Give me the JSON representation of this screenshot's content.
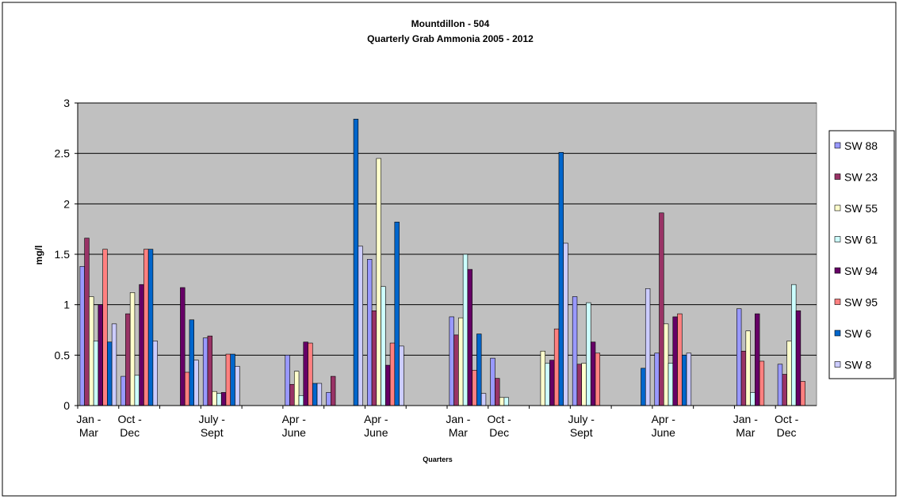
{
  "chart_data": {
    "type": "bar",
    "title": "Mountdillon - 504",
    "subtitle": "Quarterly Grab Ammonia 2005 - 2012",
    "y_label": "mg/l",
    "x_label": "Quarters",
    "categories": [
      "Jan - Mar",
      "Oct - Dec",
      null,
      "July - Sept",
      null,
      "Apr - June",
      null,
      "Apr - June",
      null,
      "Jan - Mar",
      "Oct - Dec",
      null,
      "July - Sept",
      null,
      "Apr - June",
      null,
      "Jan - Mar",
      "Oct - Dec"
    ],
    "series": [
      {
        "name": "SW 88",
        "color": "#9999ff",
        "values": [
          1.38,
          0.29,
          0,
          0.67,
          0,
          0.5,
          0.13,
          1.45,
          0,
          0.88,
          0.47,
          0,
          1.08,
          0,
          0.52,
          0,
          0.96,
          0.41
        ]
      },
      {
        "name": "SW 23",
        "color": "#993366",
        "values": [
          1.66,
          0.91,
          0,
          0.69,
          0,
          0.21,
          0.29,
          0.94,
          0,
          0.7,
          0.27,
          0,
          0.41,
          0,
          1.91,
          0,
          0.54,
          0.31
        ]
      },
      {
        "name": "SW 55",
        "color": "#ffffcc",
        "values": [
          1.08,
          1.12,
          0,
          0.14,
          0,
          0.34,
          0,
          2.45,
          0,
          0.87,
          0.08,
          0.54,
          0.42,
          0,
          0.81,
          0,
          0.74,
          0.64
        ]
      },
      {
        "name": "SW 61",
        "color": "#ccffff",
        "values": [
          0.64,
          0.3,
          0,
          0.12,
          0,
          0.1,
          0,
          1.18,
          0,
          1.5,
          0.08,
          0.42,
          1.02,
          0,
          0.42,
          0,
          0.13,
          1.2
        ]
      },
      {
        "name": "SW 94",
        "color": "#660066",
        "values": [
          1.0,
          1.2,
          1.17,
          0.13,
          0,
          0.63,
          0,
          0.4,
          0,
          1.35,
          0,
          0.45,
          0.63,
          0,
          0.88,
          0,
          0.91,
          0.94
        ]
      },
      {
        "name": "SW 95",
        "color": "#ff8080",
        "values": [
          1.55,
          1.55,
          0.33,
          0.51,
          0,
          0.62,
          0,
          0.62,
          0,
          0.35,
          0,
          0.76,
          0.52,
          0,
          0.91,
          0,
          0.44,
          0.24
        ]
      },
      {
        "name": "SW 6",
        "color": "#0066cc",
        "values": [
          0.63,
          1.55,
          0.85,
          0.51,
          0,
          0.22,
          2.84,
          1.82,
          0,
          0.71,
          0,
          2.51,
          0,
          0.37,
          0.5,
          0,
          0,
          0
        ]
      },
      {
        "name": "SW 8",
        "color": "#ccccff",
        "values": [
          0.81,
          0.64,
          0.45,
          0.39,
          0,
          0.22,
          1.58,
          0.59,
          0,
          0.12,
          0,
          1.61,
          0,
          1.16,
          0.52,
          0,
          0,
          0
        ]
      }
    ],
    "ylim": [
      0,
      3
    ],
    "yticks": [
      0,
      0.5,
      1,
      1.5,
      2,
      2.5,
      3
    ],
    "grid": true,
    "legend": "right"
  }
}
